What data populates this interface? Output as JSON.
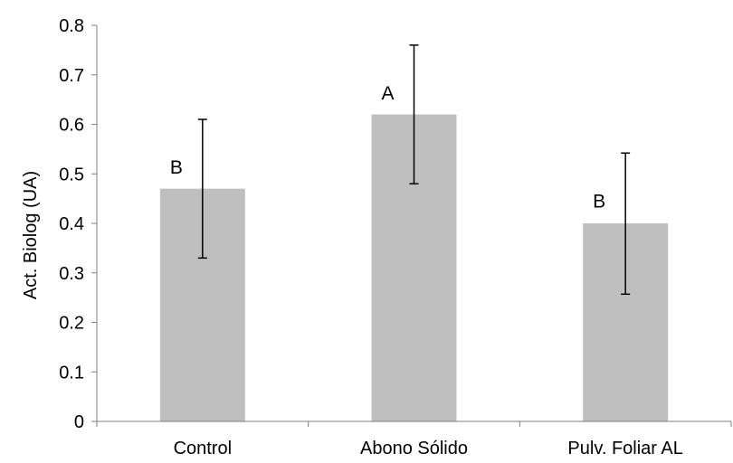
{
  "chart_data": {
    "type": "bar",
    "title": "",
    "xlabel": "",
    "ylabel": "Act. Biolog (UA)",
    "ylim": [
      0,
      0.8
    ],
    "yticks": [
      "0",
      "0.1",
      "0.2",
      "0.3",
      "0.4",
      "0.5",
      "0.6",
      "0.7",
      "0.8"
    ],
    "ytick_values": [
      0,
      0.1,
      0.2,
      0.3,
      0.4,
      0.5,
      0.6,
      0.7,
      0.8
    ],
    "categories": [
      "Control",
      "Abono Sólido",
      "Pulv. Foliar AL"
    ],
    "values": [
      0.47,
      0.62,
      0.4
    ],
    "error_low": [
      0.33,
      0.48,
      0.257
    ],
    "error_high": [
      0.61,
      0.76,
      0.542
    ],
    "significance_labels": [
      "B",
      "A",
      "B"
    ],
    "grid": false,
    "legend": "none",
    "bar_color": "#bfbfbf",
    "axis_color": "#7f7f7f",
    "error_bar_color": "#000000"
  }
}
